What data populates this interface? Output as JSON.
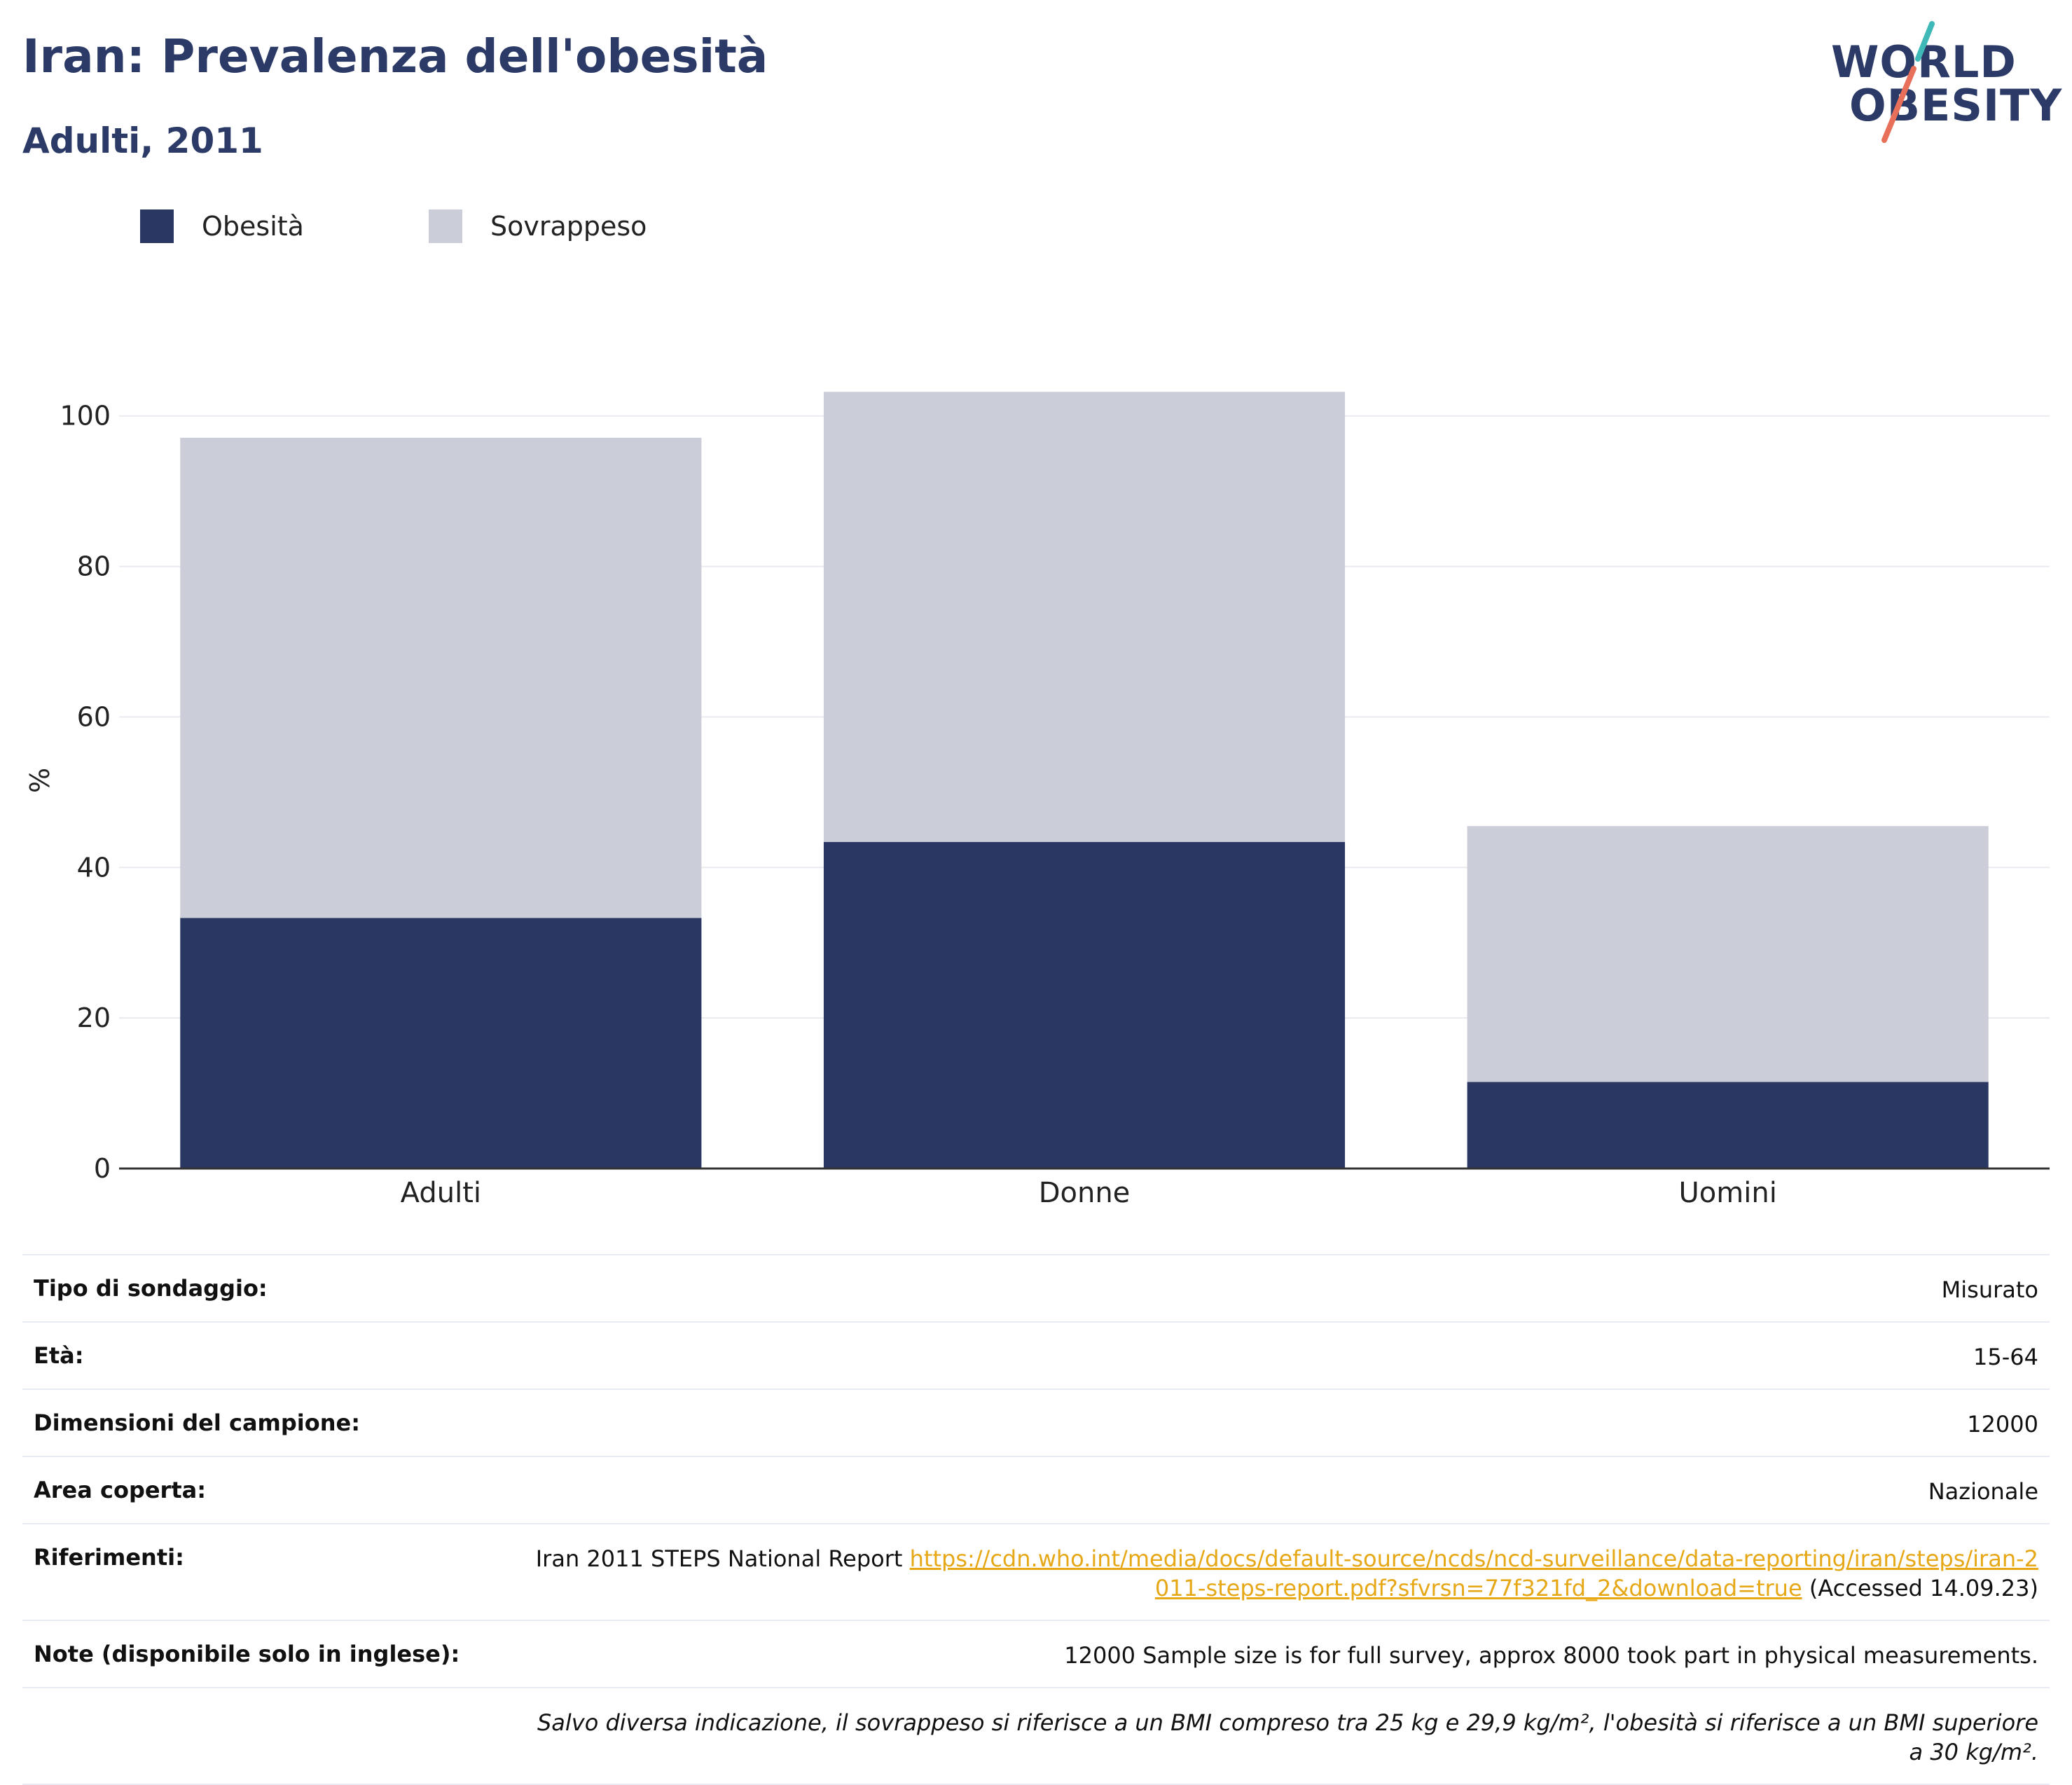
{
  "header": {
    "title": "Iran: Prevalenza dell'obesità",
    "subtitle": "Adulti, 2011"
  },
  "logo": {
    "line1": "WORLD",
    "line2": "OBESITY"
  },
  "colors": {
    "obesity": "#2b3763",
    "overweight": "#cbcdd8",
    "title": "#2b3a66",
    "link": "#e6a817"
  },
  "chart_data": {
    "type": "bar",
    "stacked": true,
    "categories": [
      "Adulti",
      "Donne",
      "Uomini"
    ],
    "series": [
      {
        "name": "Obesità",
        "values": [
          33.3,
          43.4,
          11.5
        ]
      },
      {
        "name": "Sovrappeso",
        "values": [
          63.8,
          59.8,
          34.0
        ]
      }
    ],
    "ylabel": "%",
    "ylim": [
      0,
      105
    ],
    "yticks": [
      0,
      20,
      40,
      60,
      80,
      100
    ],
    "grid": true,
    "legend": "top-left"
  },
  "info": {
    "rows": [
      {
        "label": "Tipo di sondaggio:",
        "value": "Misurato"
      },
      {
        "label": "Età:",
        "value": "15-64"
      },
      {
        "label": "Dimensioni del campione:",
        "value": "12000"
      },
      {
        "label": "Area coperta:",
        "value": "Nazionale"
      }
    ],
    "references": {
      "label": "Riferimenti:",
      "prefix": "Iran 2011 STEPS National Report",
      "link": "https://cdn.who.int/media/docs/default-source/ncds/ncd-surveillance/data-reporting/iran/steps/iran-2011-steps-report.pdf?sfvrsn=77f321fd_2&download=true",
      "suffix": "(Accessed 14.09.23)"
    },
    "notes": {
      "label": "Note (disponibile solo in inglese):",
      "value": "12000 Sample size is for full survey, approx 8000 took part in physical measurements."
    },
    "footnote": "Salvo diversa indicazione, il sovrappeso si riferisce a un BMI compreso tra 25 kg e 29,9 kg/m², l'obesità si riferisce a un BMI superiore a 30 kg/m²."
  }
}
